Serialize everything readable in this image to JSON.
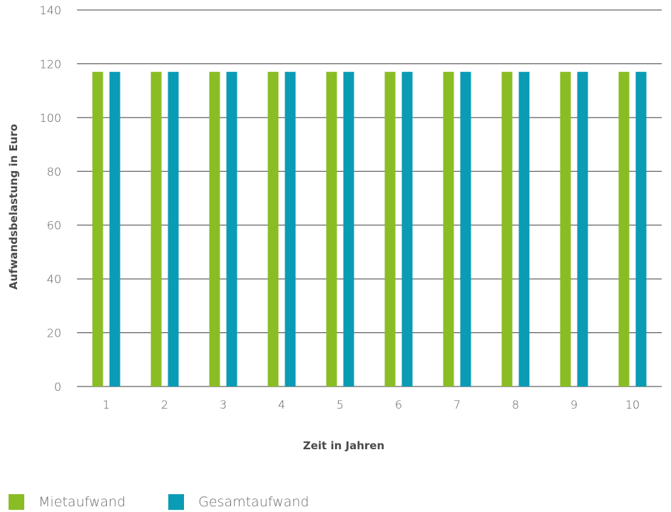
{
  "chart_data": {
    "type": "bar",
    "categories": [
      "1",
      "2",
      "3",
      "4",
      "5",
      "6",
      "7",
      "8",
      "9",
      "10"
    ],
    "series": [
      {
        "name": "Mietaufwand",
        "color": "#8ABD24",
        "values": [
          117,
          117,
          117,
          117,
          117,
          117,
          117,
          117,
          117,
          117
        ]
      },
      {
        "name": "Gesamtaufwand",
        "color": "#0A9BB5",
        "values": [
          117,
          117,
          117,
          117,
          117,
          117,
          117,
          117,
          117,
          117
        ]
      }
    ],
    "title": "",
    "xlabel": "Zeit in Jahren",
    "ylabel": "Aufwandsbelastung in Euro",
    "ylim": [
      0,
      140
    ],
    "yticks": [
      "0",
      "20",
      "40",
      "60",
      "80",
      "100",
      "120",
      "140"
    ],
    "grid": true,
    "legend_position": "bottom-left"
  }
}
